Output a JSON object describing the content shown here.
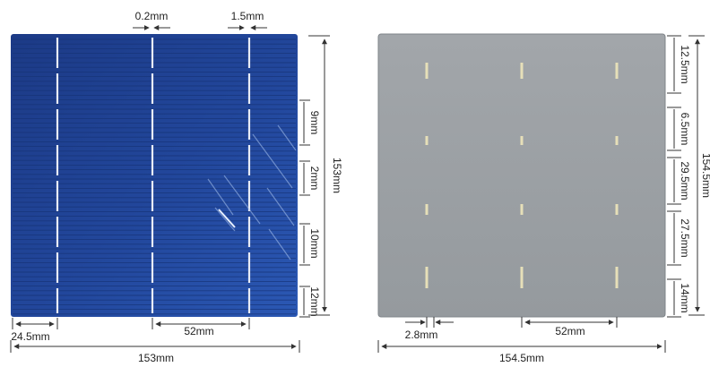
{
  "front_cell": {
    "dims": {
      "finger_width": "0.2mm",
      "busbar_width": "1.5mm",
      "height": "153mm",
      "gap_9": "9mm",
      "gap_2": "2mm",
      "gap_10": "10mm",
      "gap_12": "12mm",
      "edge_offset": "24.5mm",
      "busbar_spacing": "52mm",
      "width": "153mm"
    },
    "colors": {
      "cell_fill": "#1e3f8e",
      "cell_edge": "#2a55b5",
      "busbar": "#e8ecf6"
    }
  },
  "back_cell": {
    "dims": {
      "pad_12_5": "12.5mm",
      "pad_6_5": "6.5mm",
      "gap_29_5": "29.5mm",
      "gap_27_5": "27.5mm",
      "pad_14": "14mm",
      "height": "154.5mm",
      "edge_offset": "2.8mm",
      "pad_spacing": "52mm",
      "width": "154.5mm"
    },
    "colors": {
      "cell_fill": "#9da2a6",
      "pad": "#e6dfb8"
    }
  }
}
